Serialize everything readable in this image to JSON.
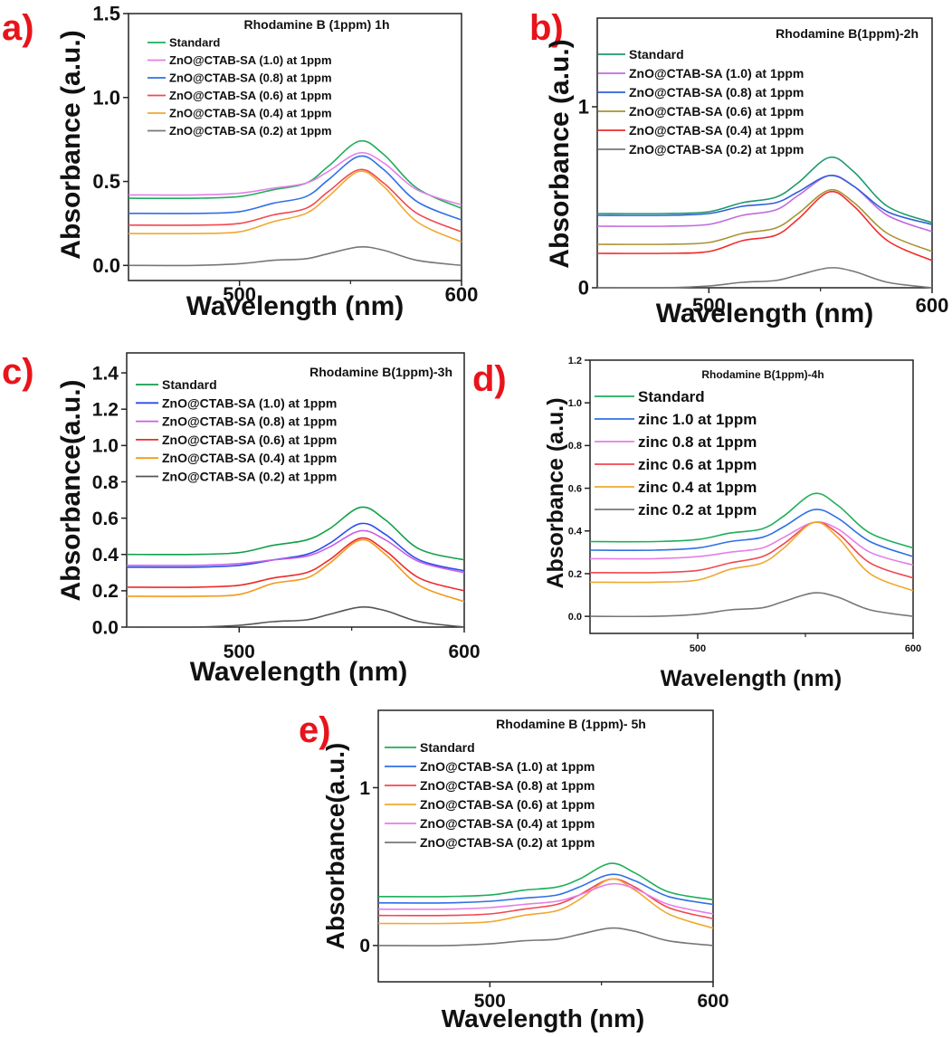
{
  "chart_data": [
    {
      "type": "line",
      "panel_label": "a)",
      "title": "Rhodamine B (1ppm) 1h",
      "xlabel": "Wavelength (nm)",
      "ylabel": "Absorbance (a.u.)",
      "xlim": [
        450,
        600
      ],
      "ylim": [
        -0.09,
        1.5
      ],
      "xticks": [
        "500",
        "600"
      ],
      "xtick_values": [
        500,
        600
      ],
      "yticks": [
        "0.0",
        "0.5",
        "1.0",
        "1.5"
      ],
      "ytick_values": [
        0,
        0.5,
        1.0,
        1.5
      ],
      "legend_position": "top-left",
      "x": [
        450,
        480,
        500,
        515,
        530,
        540,
        554,
        565,
        580,
        600
      ],
      "series": [
        {
          "name": "Standard",
          "color": "#1fae5b",
          "values": [
            0.4,
            0.4,
            0.41,
            0.45,
            0.49,
            0.59,
            0.74,
            0.66,
            0.46,
            0.34
          ]
        },
        {
          "name": "ZnO@CTAB-SA (1.0) at 1ppm",
          "color": "#e57ee8",
          "values": [
            0.42,
            0.42,
            0.43,
            0.46,
            0.49,
            0.56,
            0.67,
            0.61,
            0.45,
            0.36
          ]
        },
        {
          "name": "ZnO@CTAB-SA (0.8) at 1ppm",
          "color": "#2f6fe6",
          "values": [
            0.31,
            0.31,
            0.32,
            0.37,
            0.41,
            0.51,
            0.65,
            0.57,
            0.38,
            0.27
          ]
        },
        {
          "name": "ZnO@CTAB-SA (0.6) at 1ppm",
          "color": "#f2474f",
          "values": [
            0.24,
            0.24,
            0.25,
            0.3,
            0.34,
            0.44,
            0.57,
            0.49,
            0.31,
            0.2
          ]
        },
        {
          "name": "ZnO@CTAB-SA (0.4) at 1ppm",
          "color": "#f0a830",
          "values": [
            0.19,
            0.19,
            0.2,
            0.26,
            0.31,
            0.41,
            0.56,
            0.47,
            0.26,
            0.14
          ]
        },
        {
          "name": "ZnO@CTAB-SA (0.2) at 1ppm",
          "color": "#777777",
          "values": [
            0,
            0,
            0.01,
            0.03,
            0.04,
            0.07,
            0.11,
            0.09,
            0.03,
            0
          ]
        }
      ]
    },
    {
      "type": "line",
      "panel_label": "b)",
      "title": "Rhodamine B(1ppm)-2h",
      "xlabel": "Wavelength (nm)",
      "ylabel": "Absorbance (a.u.)",
      "xlim": [
        450,
        600
      ],
      "ylim": [
        0,
        1.49
      ],
      "xticks": [
        "500",
        "600"
      ],
      "xtick_values": [
        500,
        600
      ],
      "yticks": [
        "0",
        "1"
      ],
      "ytick_values": [
        0,
        1
      ],
      "legend_position": "top-left",
      "x": [
        450,
        480,
        500,
        515,
        530,
        540,
        554,
        565,
        580,
        600
      ],
      "series": [
        {
          "name": "Standard",
          "color": "#1d9a6a",
          "values": [
            0.41,
            0.41,
            0.42,
            0.47,
            0.5,
            0.58,
            0.72,
            0.64,
            0.45,
            0.36
          ]
        },
        {
          "name": "ZnO@CTAB-SA (1.0) at 1ppm",
          "color": "#c06ae0",
          "values": [
            0.34,
            0.34,
            0.35,
            0.4,
            0.43,
            0.51,
            0.62,
            0.56,
            0.4,
            0.31
          ]
        },
        {
          "name": "ZnO@CTAB-SA (0.8) at 1ppm",
          "color": "#2f5fd8",
          "values": [
            0.4,
            0.4,
            0.41,
            0.45,
            0.47,
            0.53,
            0.62,
            0.56,
            0.42,
            0.35
          ]
        },
        {
          "name": "ZnO@CTAB-SA (0.6) at 1ppm",
          "color": "#a89234",
          "values": [
            0.24,
            0.24,
            0.25,
            0.3,
            0.33,
            0.41,
            0.54,
            0.47,
            0.3,
            0.2
          ]
        },
        {
          "name": "ZnO@CTAB-SA (0.4) at 1ppm",
          "color": "#f22b2b",
          "values": [
            0.19,
            0.19,
            0.2,
            0.26,
            0.29,
            0.38,
            0.53,
            0.45,
            0.26,
            0.15
          ]
        },
        {
          "name": "ZnO@CTAB-SA (0.2) at 1ppm",
          "color": "#777777",
          "values": [
            0,
            0,
            0.01,
            0.03,
            0.04,
            0.07,
            0.11,
            0.09,
            0.03,
            0
          ]
        }
      ]
    },
    {
      "type": "line",
      "panel_label": "c)",
      "title": "Rhodamine B(1ppm)-3h",
      "xlabel": "Wavelength (nm)",
      "ylabel": "Absorbance(a.u.)",
      "xlim": [
        450,
        600
      ],
      "ylim": [
        0,
        1.51
      ],
      "xticks": [
        "500",
        "600"
      ],
      "xtick_values": [
        500,
        600
      ],
      "yticks": [
        "0.0",
        "0.2",
        "0.4",
        "0.6",
        "0.8",
        "1.0",
        "1.2",
        "1.4"
      ],
      "ytick_values": [
        0,
        0.2,
        0.4,
        0.6,
        0.8,
        1.0,
        1.2,
        1.4
      ],
      "legend_position": "top-left",
      "x": [
        450,
        480,
        500,
        515,
        530,
        540,
        554,
        565,
        580,
        600
      ],
      "series": [
        {
          "name": "Standard",
          "color": "#12a04a",
          "values": [
            0.4,
            0.4,
            0.41,
            0.45,
            0.48,
            0.54,
            0.66,
            0.59,
            0.43,
            0.37
          ]
        },
        {
          "name": "ZnO@CTAB-SA (1.0) at 1ppm",
          "color": "#2a4fe8",
          "values": [
            0.33,
            0.33,
            0.34,
            0.37,
            0.4,
            0.46,
            0.57,
            0.51,
            0.37,
            0.31
          ]
        },
        {
          "name": "ZnO@CTAB-SA (0.8) at 1ppm",
          "color": "#c95fe6",
          "values": [
            0.34,
            0.34,
            0.35,
            0.37,
            0.39,
            0.44,
            0.53,
            0.48,
            0.36,
            0.3
          ]
        },
        {
          "name": "ZnO@CTAB-SA (0.6) at 1ppm",
          "color": "#ee2a2a",
          "values": [
            0.22,
            0.22,
            0.23,
            0.27,
            0.3,
            0.37,
            0.49,
            0.42,
            0.27,
            0.2
          ]
        },
        {
          "name": "ZnO@CTAB-SA (0.4) at 1ppm",
          "color": "#f39a1a",
          "values": [
            0.17,
            0.17,
            0.18,
            0.24,
            0.27,
            0.35,
            0.48,
            0.4,
            0.23,
            0.14
          ]
        },
        {
          "name": "ZnO@CTAB-SA (0.2) at 1ppm",
          "color": "#555555",
          "values": [
            0,
            0,
            0.01,
            0.03,
            0.04,
            0.07,
            0.11,
            0.09,
            0.03,
            0
          ]
        }
      ]
    },
    {
      "type": "line",
      "panel_label": "d)",
      "title": "Rhodamine B(1ppm)-4h",
      "xlabel": "Wavelength (nm)",
      "ylabel": "Absorbance (a.u.)",
      "xlim": [
        450,
        600
      ],
      "ylim": [
        -0.08,
        1.2
      ],
      "xticks": [
        "500",
        "600"
      ],
      "xtick_values": [
        500,
        600
      ],
      "yticks": [
        "0.0",
        "0.2",
        "0.4",
        "0.6",
        "0.8",
        "1.0",
        "1.2"
      ],
      "ytick_values": [
        0,
        0.2,
        0.4,
        0.6,
        0.8,
        1.0,
        1.2
      ],
      "legend_position": "top-left",
      "x": [
        450,
        480,
        500,
        515,
        530,
        540,
        554,
        565,
        580,
        600
      ],
      "series": [
        {
          "name": "Standard",
          "color": "#1fae5b",
          "values": [
            0.35,
            0.35,
            0.36,
            0.39,
            0.41,
            0.47,
            0.575,
            0.52,
            0.39,
            0.32
          ]
        },
        {
          "name": "zinc 1.0 at 1ppm",
          "color": "#2f6fe6",
          "values": [
            0.31,
            0.31,
            0.32,
            0.35,
            0.37,
            0.42,
            0.5,
            0.46,
            0.35,
            0.28
          ]
        },
        {
          "name": "zinc 0.8 at 1ppm",
          "color": "#e57ee8",
          "values": [
            0.27,
            0.27,
            0.28,
            0.3,
            0.32,
            0.37,
            0.44,
            0.41,
            0.3,
            0.24
          ]
        },
        {
          "name": "zinc 0.6 at 1ppm",
          "color": "#f2474f",
          "values": [
            0.205,
            0.205,
            0.215,
            0.25,
            0.28,
            0.34,
            0.44,
            0.39,
            0.25,
            0.18
          ]
        },
        {
          "name": "zinc 0.4 at 1ppm",
          "color": "#f0a830",
          "values": [
            0.16,
            0.16,
            0.17,
            0.22,
            0.25,
            0.32,
            0.44,
            0.37,
            0.2,
            0.12
          ]
        },
        {
          "name": "zinc 0.2 at 1ppm",
          "color": "#777777",
          "values": [
            0,
            0,
            0.01,
            0.03,
            0.04,
            0.07,
            0.11,
            0.09,
            0.03,
            0
          ]
        }
      ]
    },
    {
      "type": "line",
      "panel_label": "e)",
      "title": "Rhodamine B (1ppm)- 5h",
      "xlabel": "Wavelength (nm)",
      "ylabel": "Absorbance(a.u.)",
      "xlim": [
        450,
        600
      ],
      "ylim": [
        -0.23,
        1.49
      ],
      "xticks": [
        "500",
        "600"
      ],
      "xtick_values": [
        500,
        600
      ],
      "yticks": [
        "0",
        "1"
      ],
      "ytick_values": [
        0,
        1
      ],
      "legend_position": "top-left",
      "x": [
        450,
        480,
        500,
        515,
        530,
        540,
        554,
        565,
        580,
        600
      ],
      "series": [
        {
          "name": "Standard",
          "color": "#1fae5b",
          "values": [
            0.31,
            0.31,
            0.32,
            0.35,
            0.37,
            0.42,
            0.52,
            0.46,
            0.34,
            0.29
          ]
        },
        {
          "name": "ZnO@CTAB-SA (1.0) at 1ppm",
          "color": "#2f6fe6",
          "values": [
            0.27,
            0.27,
            0.28,
            0.3,
            0.32,
            0.37,
            0.45,
            0.41,
            0.31,
            0.26
          ]
        },
        {
          "name": "ZnO@CTAB-SA (0.8) at 1ppm",
          "color": "#f2474f",
          "values": [
            0.19,
            0.19,
            0.2,
            0.23,
            0.26,
            0.32,
            0.42,
            0.37,
            0.24,
            0.17
          ]
        },
        {
          "name": "ZnO@CTAB-SA (0.6) at 1ppm",
          "color": "#f0a830",
          "values": [
            0.14,
            0.14,
            0.15,
            0.19,
            0.22,
            0.29,
            0.42,
            0.35,
            0.2,
            0.11
          ]
        },
        {
          "name": "ZnO@CTAB-SA (0.4) at 1ppm",
          "color": "#e57ee8",
          "values": [
            0.23,
            0.23,
            0.24,
            0.26,
            0.28,
            0.32,
            0.39,
            0.36,
            0.26,
            0.2
          ]
        },
        {
          "name": "ZnO@CTAB-SA (0.2) at 1ppm",
          "color": "#777777",
          "values": [
            0,
            0,
            0.01,
            0.03,
            0.04,
            0.07,
            0.11,
            0.09,
            0.03,
            0
          ]
        }
      ]
    }
  ]
}
